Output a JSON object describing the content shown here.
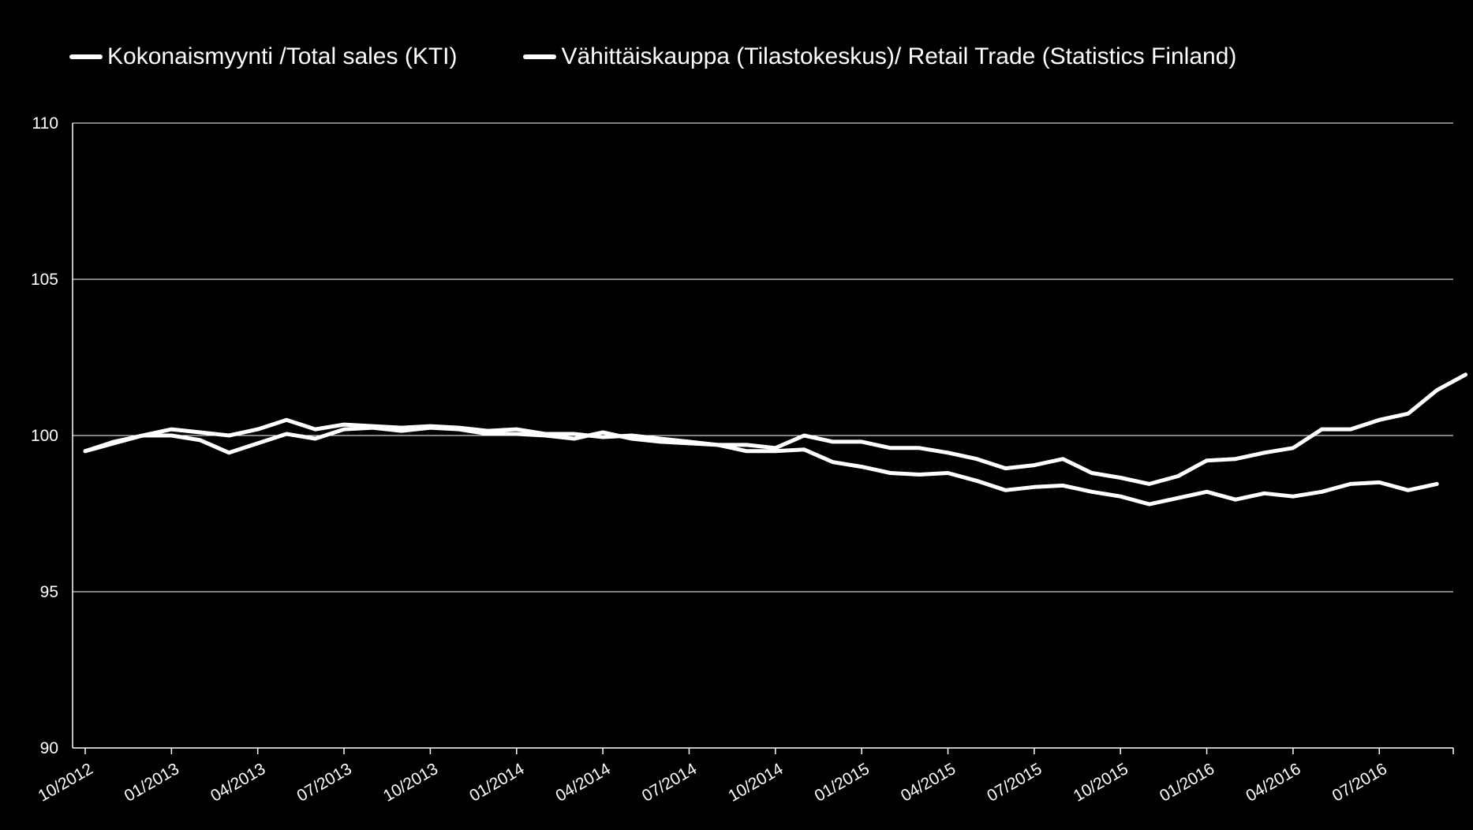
{
  "chart_data": {
    "type": "line",
    "title": "",
    "xlabel": "",
    "ylabel": "",
    "ylim": [
      90,
      110
    ],
    "yticks": [
      "90",
      "95",
      "100",
      "105",
      "110"
    ],
    "xticks": [
      "10/2012",
      "01/2013",
      "04/2013",
      "07/2013",
      "10/2013",
      "01/2014",
      "04/2014",
      "07/2014",
      "10/2014",
      "01/2015",
      "04/2015",
      "07/2015",
      "10/2015",
      "01/2016",
      "04/2016",
      "07/2016"
    ],
    "grid": true,
    "legend_position": "top",
    "series": [
      {
        "name": "Kokonaismyynti /Total sales (KTI)",
        "color": "#ffffff",
        "values": [
          99.5,
          99.8,
          100.0,
          100.2,
          100.1,
          100.0,
          100.2,
          100.5,
          100.2,
          100.35,
          100.3,
          100.25,
          100.3,
          100.25,
          100.15,
          100.2,
          100.05,
          100.05,
          99.95,
          100.0,
          99.9,
          99.8,
          99.7,
          99.7,
          99.6,
          100.0,
          99.8,
          99.8,
          99.6,
          99.6,
          99.45,
          99.25,
          98.95,
          99.05,
          99.25,
          98.8,
          98.65,
          98.45,
          98.7,
          99.2,
          99.25,
          99.45,
          99.6,
          100.2,
          100.2,
          100.5,
          100.7,
          101.45,
          101.95
        ]
      },
      {
        "name": "Vähittäiskauppa (Tilastokeskus)/ Retail Trade (Statistics Finland)",
        "color": "#ffffff",
        "values": [
          99.5,
          99.75,
          100.0,
          100.0,
          99.85,
          99.45,
          99.75,
          100.05,
          99.9,
          100.2,
          100.25,
          100.15,
          100.25,
          100.2,
          100.05,
          100.05,
          100.0,
          99.9,
          100.1,
          99.9,
          99.8,
          99.75,
          99.7,
          99.5,
          99.5,
          99.55,
          99.15,
          99.0,
          98.8,
          98.75,
          98.8,
          98.55,
          98.25,
          98.35,
          98.4,
          98.2,
          98.05,
          97.8,
          98.0,
          98.2,
          97.95,
          98.15,
          98.05,
          98.2,
          98.45,
          98.5,
          98.25,
          98.45
        ]
      }
    ]
  }
}
